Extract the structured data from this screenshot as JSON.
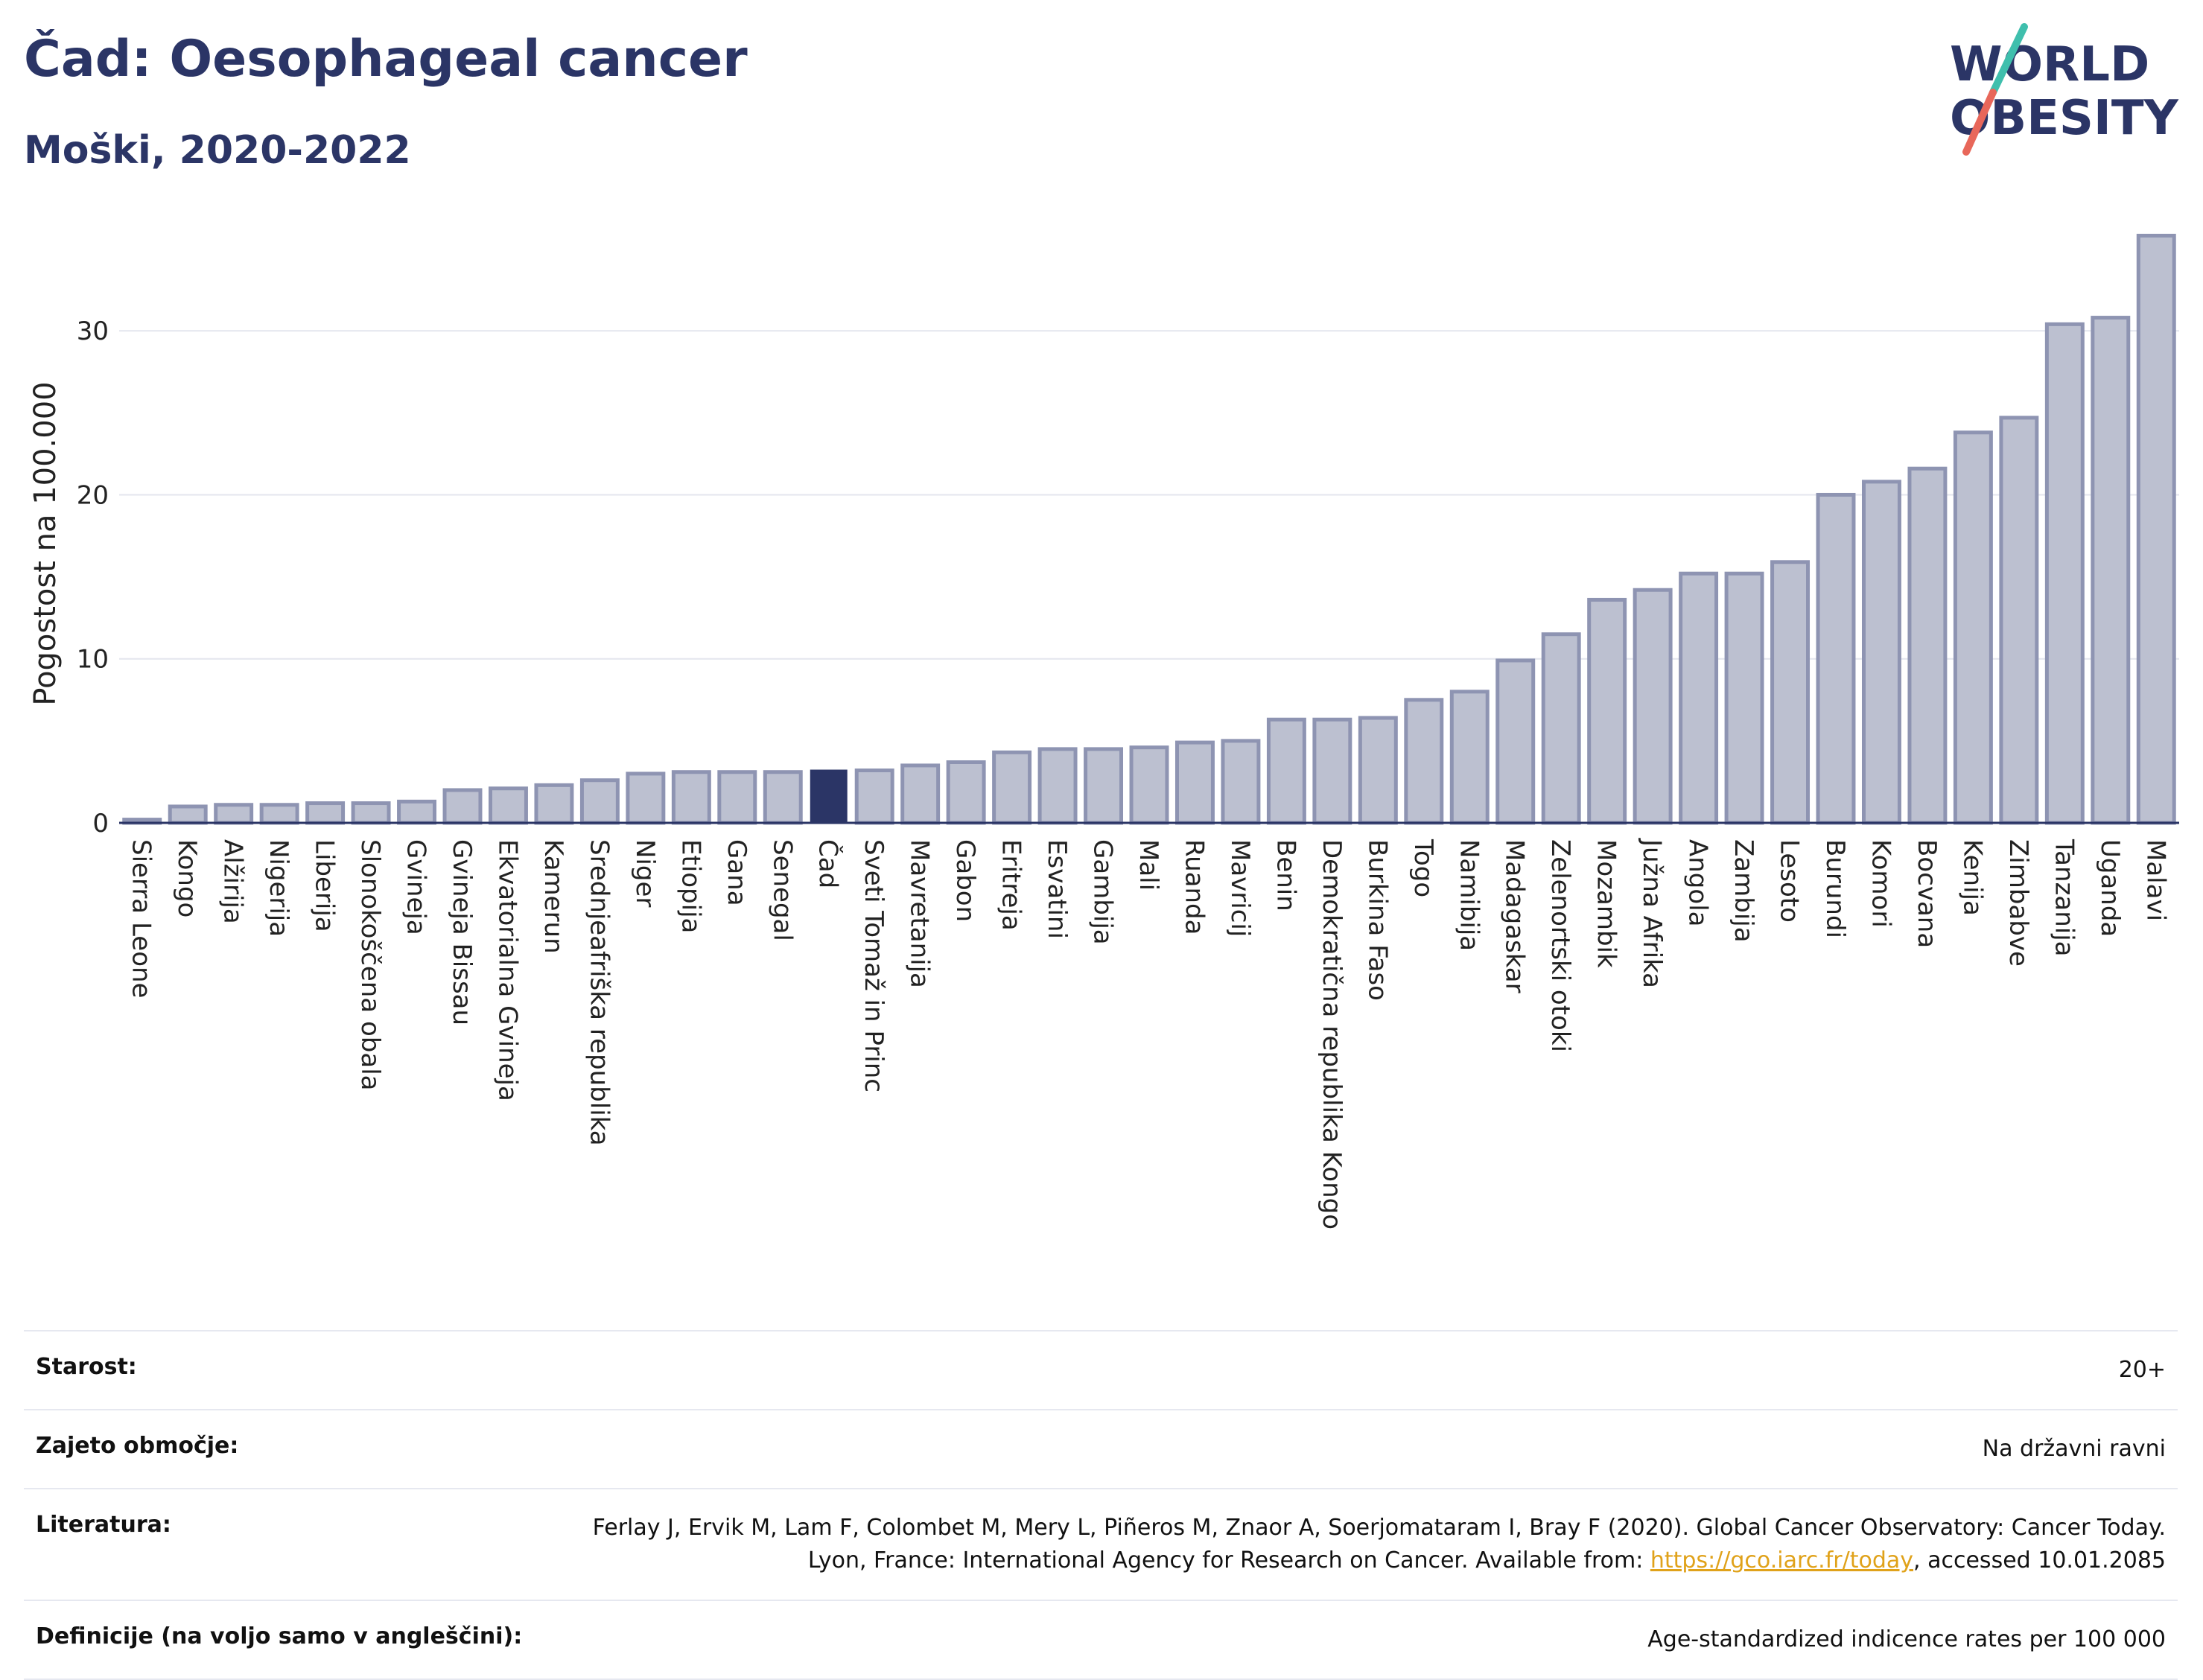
{
  "header": {
    "title": "Čad: Oesophageal cancer",
    "subtitle": "Moški, 2020-2022"
  },
  "logo": {
    "line1": "WORLD",
    "line2": "OBESITY"
  },
  "chart_data": {
    "type": "bar",
    "title": "Čad: Oesophageal cancer",
    "subtitle": "Moški, 2020-2022",
    "xlabel": "",
    "ylabel": "Pogostost na 100.000",
    "ylim": [
      0,
      37
    ],
    "yticks": [
      0,
      10,
      20,
      30
    ],
    "grid": true,
    "highlight": "Čad",
    "colors": {
      "default": "#bcc0d0",
      "default_border": "#8e94b2",
      "highlight": "#2b3566"
    },
    "categories": [
      "Sierra Leone",
      "Kongo",
      "Alžirija",
      "Nigerija",
      "Liberija",
      "Slonokoščena obala",
      "Gvineja",
      "Gvineja Bissau",
      "Ekvatorialna Gvineja",
      "Kamerun",
      "Srednjeafriška republika",
      "Niger",
      "Etiopija",
      "Gana",
      "Senegal",
      "Čad",
      "Sveti Tomaž in Princ",
      "Mavretanija",
      "Gabon",
      "Eritreja",
      "Esvatini",
      "Gambija",
      "Mali",
      "Ruanda",
      "Mavricij",
      "Benin",
      "Demokratična republika Kongo",
      "Burkina Faso",
      "Togo",
      "Namibija",
      "Madagaskar",
      "Zelenortski otoki",
      "Mozambik",
      "Južna Afrika",
      "Angola",
      "Zambija",
      "Lesoto",
      "Burundi",
      "Komori",
      "Bocvana",
      "Kenija",
      "Zimbabve",
      "Tanzanija",
      "Uganda",
      "Malavi"
    ],
    "values": [
      0.2,
      1.0,
      1.1,
      1.1,
      1.2,
      1.2,
      1.3,
      2.0,
      2.1,
      2.3,
      2.6,
      3.0,
      3.1,
      3.1,
      3.1,
      3.2,
      3.2,
      3.5,
      3.7,
      4.3,
      4.5,
      4.5,
      4.6,
      4.9,
      5.0,
      6.3,
      6.3,
      6.4,
      7.5,
      8.0,
      9.9,
      11.5,
      13.6,
      14.2,
      15.2,
      15.2,
      15.9,
      20.0,
      20.8,
      21.6,
      23.8,
      24.7,
      30.4,
      30.8,
      35.8
    ]
  },
  "footer": {
    "rows": [
      {
        "label": "Starost:",
        "value": "20+"
      },
      {
        "label": "Zajeto območje:",
        "value": "Na državni ravni"
      },
      {
        "label": "Literatura:",
        "value_pre": "Ferlay J, Ervik M, Lam F, Colombet M, Mery L, Piñeros M, Znaor A, Soerjomataram I, Bray F (2020). Global Cancer Observatory: Cancer Today. Lyon, France: International Agency for Research on Cancer. Available from: ",
        "link": "https://gco.iarc.fr/today",
        "value_post": ", accessed 10.01.2085"
      },
      {
        "label": "Definicije (na voljo samo v angleščini):",
        "value": "Age-standardized indicence rates per 100 000"
      }
    ]
  }
}
